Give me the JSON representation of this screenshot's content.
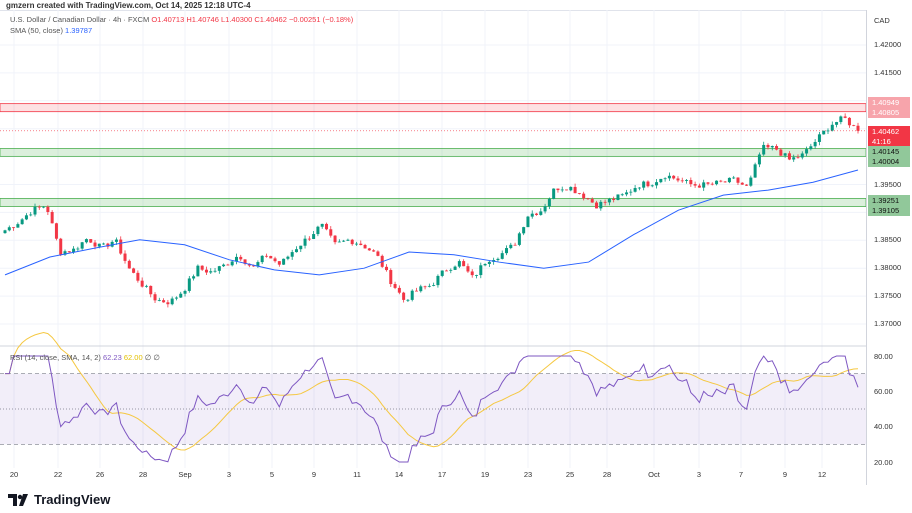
{
  "credit": "gmzern created with TradingView.com, Oct 14, 2025 12:18 UTC-4",
  "legend": {
    "symbol": "U.S. Dollar / Canadian Dollar · 4h · FXCM",
    "open": "O1.40713",
    "high": "H1.40746",
    "low": "L1.40300",
    "close": "C1.40462",
    "change": "−0.00251 (−0.18%)",
    "sma_label": "SMA (50, close)",
    "sma_value": "1.39787"
  },
  "rsi_legend": {
    "label": "RSI (14, close, SMA, 14, 2)",
    "rsi": "62.23",
    "sma": "62.00",
    "extra1": "∅",
    "extra2": "∅"
  },
  "currency": "CAD",
  "price_labels": [
    "1.42000",
    "1.41500",
    "1.39500",
    "1.38500",
    "1.38000",
    "1.37500",
    "1.37000"
  ],
  "price_levels": [
    1.42,
    1.415,
    1.395,
    1.385,
    1.38,
    1.375,
    1.37
  ],
  "tags": {
    "r1": "1.40949",
    "r2": "1.40805",
    "cur": "1.40462",
    "countdown": "41:16",
    "g1": "1.40145",
    "g2": "1.40004",
    "g3": "1.39251",
    "g4": "1.39105"
  },
  "rsi_labels": [
    "80.00",
    "60.00",
    "40.00",
    "20.00"
  ],
  "x_labels": [
    "20",
    "22",
    "26",
    "28",
    "Sep",
    "3",
    "5",
    "9",
    "11",
    "14",
    "17",
    "19",
    "23",
    "25",
    "28",
    "Oct",
    "3",
    "7",
    "9",
    "12"
  ],
  "brand": "TradingView",
  "colors": {
    "up": "#089981",
    "down": "#f23645",
    "sma": "#2962ff",
    "rsi": "#7e57c2",
    "rsi_sma": "#f5c842"
  },
  "chart_data": {
    "type": "candlestick",
    "zones": [
      {
        "kind": "resistance",
        "low": 1.40805,
        "high": 1.40949
      },
      {
        "kind": "support",
        "low": 1.40004,
        "high": 1.40145
      },
      {
        "kind": "support",
        "low": 1.39105,
        "high": 1.39251
      }
    ],
    "current_price": 1.40462,
    "close_path": [
      1.3868,
      1.3883,
      1.3904,
      1.3913,
      1.3829,
      1.3833,
      1.3854,
      1.3836,
      1.3851,
      1.38,
      1.377,
      1.3743,
      1.3739,
      1.3761,
      1.38,
      1.3793,
      1.3806,
      1.3824,
      1.38,
      1.3824,
      1.3806,
      1.3833,
      1.3854,
      1.3877,
      1.3842,
      1.3851,
      1.3842,
      1.3824,
      1.3779,
      1.3743,
      1.3761,
      1.377,
      1.3797,
      1.3811,
      1.3782,
      1.3815,
      1.3824,
      1.3842,
      1.3895,
      1.3904,
      1.3944,
      1.3946,
      1.3931,
      1.3913,
      1.3922,
      1.3931,
      1.3949,
      1.3953,
      1.3967,
      1.3958,
      1.3949,
      1.3949,
      1.3953,
      1.3958,
      1.3944,
      1.4015,
      1.4015,
      1.3994,
      1.4003,
      1.403,
      1.4057,
      1.4069,
      1.4046
    ],
    "sma_path": [
      1.3788,
      1.382,
      1.3836,
      1.3851,
      1.3842,
      1.3815,
      1.3797,
      1.3788,
      1.38,
      1.3829,
      1.3824,
      1.3811,
      1.38,
      1.3811,
      1.386,
      1.3904,
      1.3931,
      1.394,
      1.3954,
      1.3976
    ],
    "rsi_range": [
      20,
      80
    ]
  }
}
